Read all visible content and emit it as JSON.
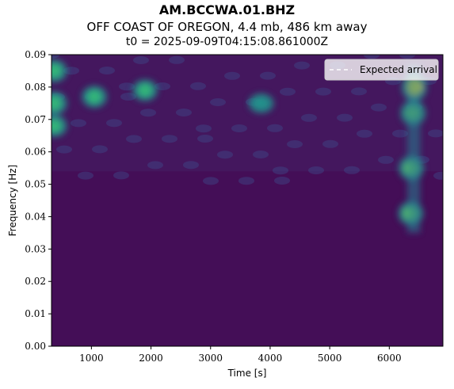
{
  "header": {
    "station": "AM.BCCWA.01.BHZ",
    "event": "OFF COAST OF OREGON, 4.4 mb, 486 km away",
    "t0": "t0 = 2025-09-09T04:15:08.861000Z"
  },
  "chart_data": {
    "type": "heatmap",
    "colormap": "viridis",
    "xlabel": "Time [s]",
    "ylabel": "Frequency [Hz]",
    "xlim": [
      330,
      6900
    ],
    "ylim": [
      0,
      0.09
    ],
    "x_ticks": [
      {
        "value": 1000,
        "label": "1000"
      },
      {
        "value": 2000,
        "label": "2000"
      },
      {
        "value": 3000,
        "label": "3000"
      },
      {
        "value": 4000,
        "label": "4000"
      },
      {
        "value": 5000,
        "label": "5000"
      },
      {
        "value": 6000,
        "label": "6000"
      }
    ],
    "y_ticks": [
      {
        "value": 0.0,
        "label": "0.00"
      },
      {
        "value": 0.01,
        "label": "0.01"
      },
      {
        "value": 0.02,
        "label": "0.02"
      },
      {
        "value": 0.03,
        "label": "0.03"
      },
      {
        "value": 0.04,
        "label": "0.04"
      },
      {
        "value": 0.05,
        "label": "0.05"
      },
      {
        "value": 0.06,
        "label": "0.06"
      },
      {
        "value": 0.07,
        "label": "0.07"
      },
      {
        "value": 0.08,
        "label": "0.08"
      },
      {
        "value": 0.09,
        "label": "0.09"
      }
    ],
    "legend": {
      "position": "top-right",
      "entries": [
        {
          "label": "Expected arrival",
          "style": "dashed",
          "color": "#ffffff"
        }
      ]
    },
    "hotspots": [
      {
        "time": 6420,
        "freq": 0.08,
        "intensity": 1.0
      },
      {
        "time": 6400,
        "freq": 0.072,
        "intensity": 0.75
      },
      {
        "time": 6370,
        "freq": 0.055,
        "intensity": 0.7
      },
      {
        "time": 6360,
        "freq": 0.041,
        "intensity": 0.65
      },
      {
        "time": 380,
        "freq": 0.085,
        "intensity": 0.55
      },
      {
        "time": 380,
        "freq": 0.075,
        "intensity": 0.6
      },
      {
        "time": 380,
        "freq": 0.068,
        "intensity": 0.5
      },
      {
        "time": 1050,
        "freq": 0.077,
        "intensity": 0.5
      },
      {
        "time": 1900,
        "freq": 0.079,
        "intensity": 0.45
      },
      {
        "time": 3850,
        "freq": 0.075,
        "intensity": 0.3
      }
    ]
  }
}
